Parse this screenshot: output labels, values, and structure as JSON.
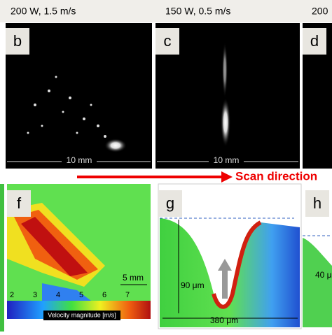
{
  "top_panels": [
    {
      "caption": "200 W, 1.5 m/s",
      "label": "b",
      "scale": "10 mm"
    },
    {
      "caption": "150 W, 0.5 m/s",
      "label": "c",
      "scale": "10 mm"
    },
    {
      "caption": "200",
      "label": "d"
    }
  ],
  "scan_direction": "Scan direction",
  "panel_f": {
    "label": "f",
    "scale": "5 mm",
    "ruler": [
      "2",
      "3",
      "4",
      "5",
      "6",
      "7"
    ],
    "colorbar": "Velocity magnitude [m/s]"
  },
  "panel_g": {
    "label": "g",
    "depth": "90 μm",
    "width": "380 μm"
  },
  "panel_h": {
    "label": "h",
    "depth": "40 μ"
  }
}
